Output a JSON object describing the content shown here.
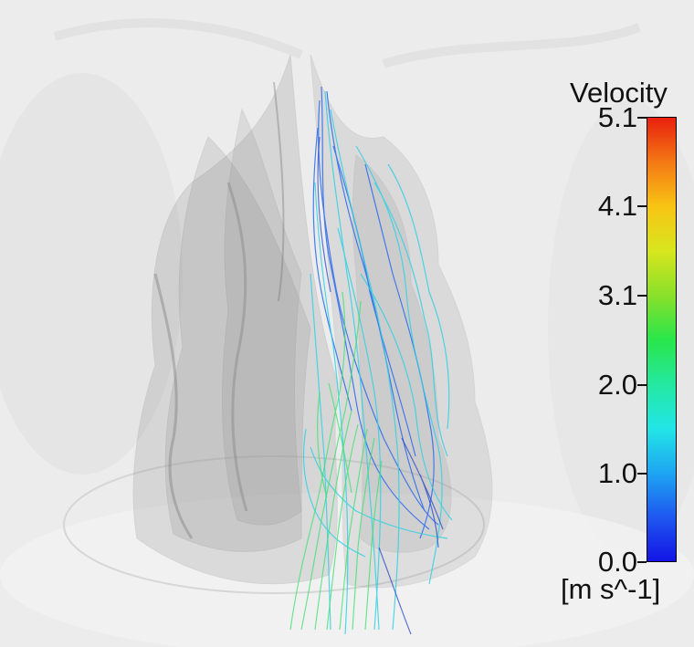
{
  "legend": {
    "title": "Velocity",
    "unit": "[m s^-1]",
    "ticks": [
      "5.1",
      "4.1",
      "3.1",
      "2.0",
      "1.0",
      "0.0"
    ],
    "colormap": [
      "#1414e6",
      "#1e58f0",
      "#1ea6f2",
      "#22e6e6",
      "#24e8a0",
      "#2ae64a",
      "#8ae02a",
      "#d8e61e",
      "#f8c414",
      "#f47814",
      "#e8200e"
    ]
  },
  "colors": {
    "background": "#ededed",
    "nasal_cavity": "#8a8a8a",
    "streamline_low": "#2850e8",
    "streamline_mid": "#2ad4e0",
    "streamline_high": "#3ee070"
  }
}
